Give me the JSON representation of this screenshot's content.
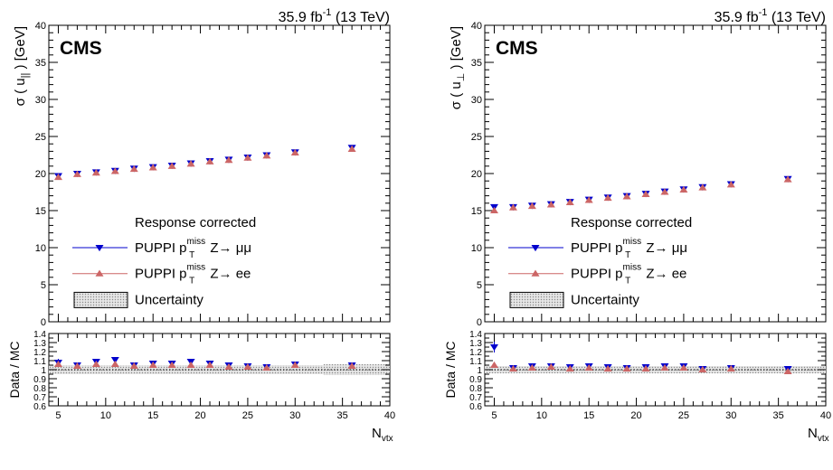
{
  "chart_data": [
    {
      "type": "scatter",
      "cms_label": "CMS",
      "lumi_label": "35.9 fb",
      "lumi_exp": "-1",
      "energy_label": " (13 TeV)",
      "ylabel_main": "σ ( u",
      "ylabel_sub": "||",
      "ylabel_tail": " ) [GeV]",
      "ylabel_ratio": "Data / MC",
      "xlabel": "N",
      "xlabel_sub": "vtx",
      "legend_header": "Response corrected",
      "legend_placement": "bottom-center",
      "xlim": [
        4,
        40
      ],
      "ylim_main": [
        0,
        40
      ],
      "ylim_ratio": [
        0.6,
        1.4
      ],
      "x_ticks": [
        5,
        10,
        15,
        20,
        25,
        30,
        35,
        40
      ],
      "y_ticks_main": [
        0,
        5,
        10,
        15,
        20,
        25,
        30,
        35,
        40
      ],
      "y_ticks_ratio": [
        0.6,
        0.7,
        0.8,
        0.9,
        1,
        1.1,
        1.2,
        1.3,
        1.4
      ],
      "x": [
        5,
        7,
        9,
        11,
        13,
        15,
        17,
        19,
        21,
        23,
        25,
        27,
        30,
        36
      ],
      "series": [
        {
          "name": "PUPPI p",
          "name_sup": "miss",
          "name_sub": "T",
          "name_tail": " Z→ μμ",
          "color": "#0000cc",
          "marker": "triangle-down",
          "values": [
            19.7,
            20.0,
            20.2,
            20.4,
            20.7,
            20.9,
            21.1,
            21.4,
            21.7,
            21.9,
            22.2,
            22.5,
            22.9,
            23.5
          ],
          "ratio": [
            1.08,
            1.05,
            1.09,
            1.11,
            1.05,
            1.07,
            1.07,
            1.09,
            1.07,
            1.05,
            1.04,
            1.03,
            1.06,
            1.05
          ],
          "ratio_err": [
            0.04,
            0,
            0,
            0,
            0,
            0,
            0,
            0,
            0,
            0,
            0,
            0,
            0,
            0
          ]
        },
        {
          "name": "PUPPI p",
          "name_sup": "miss",
          "name_sub": "T",
          "name_tail": " Z→ ee",
          "color": "#cc6666",
          "marker": "triangle-up",
          "values": [
            19.5,
            19.9,
            20.1,
            20.3,
            20.6,
            20.8,
            21.0,
            21.3,
            21.6,
            21.8,
            22.1,
            22.4,
            22.8,
            23.3
          ],
          "ratio": [
            1.06,
            1.04,
            1.06,
            1.06,
            1.04,
            1.05,
            1.05,
            1.05,
            1.05,
            1.03,
            1.03,
            1.02,
            1.05,
            1.04
          ],
          "ratio_err": [
            0,
            0,
            0,
            0,
            0,
            0,
            0,
            0,
            0,
            0,
            0,
            0,
            0,
            0
          ]
        }
      ],
      "uncertainty_label": "Uncertainty",
      "uncertainty_band": [
        0.05,
        0.05,
        0.05,
        0.05,
        0.05,
        0.05,
        0.05,
        0.05,
        0.05,
        0.05,
        0.05,
        0.05,
        0.05,
        0.06
      ]
    },
    {
      "type": "scatter",
      "cms_label": "CMS",
      "lumi_label": "35.9 fb",
      "lumi_exp": "-1",
      "energy_label": " (13 TeV)",
      "ylabel_main": "σ ( u",
      "ylabel_sub": "⊥",
      "ylabel_tail": " ) [GeV]",
      "ylabel_ratio": "Data / MC",
      "xlabel": "N",
      "xlabel_sub": "vtx",
      "legend_header": "Response corrected",
      "legend_placement": "bottom-center",
      "xlim": [
        4,
        40
      ],
      "ylim_main": [
        0,
        40
      ],
      "ylim_ratio": [
        0.6,
        1.4
      ],
      "x_ticks": [
        5,
        10,
        15,
        20,
        25,
        30,
        35,
        40
      ],
      "y_ticks_main": [
        0,
        5,
        10,
        15,
        20,
        25,
        30,
        35,
        40
      ],
      "y_ticks_ratio": [
        0.6,
        0.7,
        0.8,
        0.9,
        1,
        1.1,
        1.2,
        1.3,
        1.4
      ],
      "x": [
        5,
        7,
        9,
        11,
        13,
        15,
        17,
        19,
        21,
        23,
        25,
        27,
        30,
        36
      ],
      "series": [
        {
          "name": "PUPPI p",
          "name_sup": "miss",
          "name_sub": "T",
          "name_tail": " Z→ μμ",
          "color": "#0000cc",
          "marker": "triangle-down",
          "values": [
            15.5,
            15.5,
            15.7,
            15.9,
            16.2,
            16.5,
            16.8,
            17.0,
            17.3,
            17.6,
            17.9,
            18.2,
            18.6,
            19.3
          ],
          "ratio": [
            1.25,
            1.02,
            1.04,
            1.04,
            1.03,
            1.04,
            1.03,
            1.02,
            1.03,
            1.04,
            1.04,
            1.01,
            1.02,
            1.01
          ],
          "ratio_err": [
            0.06,
            0,
            0,
            0,
            0,
            0,
            0,
            0,
            0,
            0,
            0,
            0,
            0,
            0
          ]
        },
        {
          "name": "PUPPI p",
          "name_sup": "miss",
          "name_sub": "T",
          "name_tail": " Z→ ee",
          "color": "#cc6666",
          "marker": "triangle-up",
          "values": [
            15.0,
            15.4,
            15.6,
            15.8,
            16.1,
            16.4,
            16.7,
            16.9,
            17.2,
            17.5,
            17.8,
            18.1,
            18.5,
            19.2
          ],
          "ratio": [
            1.05,
            1.01,
            1.02,
            1.03,
            1.01,
            1.02,
            1.01,
            1.01,
            1.01,
            1.02,
            1.02,
            1.0,
            1.01,
            0.98
          ],
          "ratio_err": [
            0,
            0,
            0,
            0,
            0,
            0,
            0,
            0,
            0,
            0,
            0,
            0,
            0,
            0
          ]
        }
      ],
      "uncertainty_label": "Uncertainty",
      "uncertainty_band": [
        0.04,
        0.04,
        0.04,
        0.04,
        0.04,
        0.04,
        0.04,
        0.04,
        0.04,
        0.04,
        0.04,
        0.04,
        0.04,
        0.04
      ]
    }
  ]
}
